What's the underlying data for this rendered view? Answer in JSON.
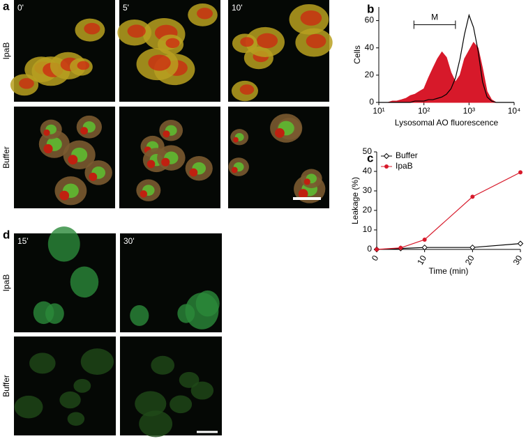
{
  "figure": {
    "panel_a": {
      "label": "a",
      "times": [
        "0'",
        "5'",
        "10'"
      ],
      "rows": [
        "IpaB",
        "Buffer"
      ]
    },
    "panel_b_label": "b",
    "panel_c_label": "c",
    "panel_d": {
      "label": "d",
      "times": [
        "15'",
        "30'"
      ],
      "rows": [
        "IpaB",
        "Buffer"
      ]
    }
  },
  "chart_data": [
    {
      "type": "area",
      "xscale": "log",
      "xlabel": "Lysosomal AO fluorescence",
      "ylabel": "Cells",
      "x": [
        10,
        13,
        16,
        20,
        25,
        32,
        40,
        50,
        63,
        79,
        100,
        126,
        158,
        200,
        251,
        316,
        398,
        501,
        631,
        794,
        1000,
        1259,
        1585,
        1995,
        2512,
        3162,
        3981,
        5012,
        6310,
        7943,
        10000
      ],
      "series": [
        {
          "color": "#d7192a",
          "fill": true,
          "values": [
            0,
            0,
            0,
            1,
            1,
            2,
            3,
            5,
            6,
            8,
            10,
            18,
            25,
            32,
            37,
            33,
            22,
            15,
            20,
            32,
            38,
            44,
            40,
            25,
            8,
            2,
            0,
            0,
            0,
            0,
            0
          ]
        },
        {
          "color": "#000000",
          "fill": false,
          "values": [
            0,
            0,
            0,
            0,
            0,
            0,
            0,
            0,
            1,
            1,
            1,
            2,
            2,
            3,
            4,
            6,
            10,
            18,
            32,
            50,
            64,
            55,
            38,
            15,
            4,
            1,
            0,
            0,
            0,
            0,
            0
          ]
        }
      ],
      "marker": {
        "label": "M",
        "range": [
          60,
          500
        ],
        "y": 57
      },
      "xlim": [
        10,
        10000
      ],
      "xticks": [
        {
          "value": 10,
          "label": "10¹"
        },
        {
          "value": 100,
          "label": "10²"
        },
        {
          "value": 1000,
          "label": "10³"
        },
        {
          "value": 10000,
          "label": "10⁴"
        }
      ],
      "ylim": [
        0,
        70
      ],
      "yticks": [
        0,
        20,
        40,
        60
      ]
    },
    {
      "type": "line",
      "xlabel": "Time (min)",
      "ylabel": "Leakage (%)",
      "x": [
        0,
        5,
        10,
        20,
        30
      ],
      "series": [
        {
          "name": "Buffer",
          "color": "#000000",
          "marker": "diamond-open",
          "values": [
            0,
            0.5,
            1,
            1,
            3
          ]
        },
        {
          "name": "IpaB",
          "color": "#d7192a",
          "marker": "circle",
          "values": [
            0,
            0.8,
            5,
            27,
            39.5
          ]
        }
      ],
      "legend": "upper left",
      "xlim": [
        0,
        30
      ],
      "xticks": [
        0,
        10,
        20,
        30
      ],
      "ylim": [
        0,
        50
      ],
      "yticks": [
        0,
        10,
        20,
        30,
        40,
        50
      ]
    }
  ]
}
